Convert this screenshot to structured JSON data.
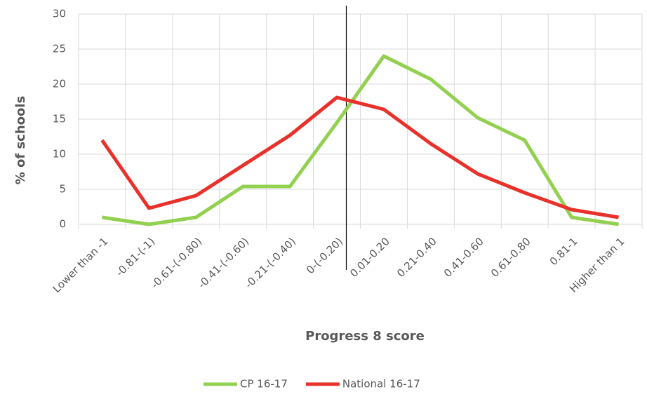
{
  "chart_data": {
    "type": "line",
    "x_label": "Progress 8 score",
    "y_label": "% of schools",
    "categories": [
      "Lower than -1",
      "-0.81-(-1)",
      "-0.61-(-0.80)",
      "-0.41-(-0.60)",
      "-0.21-(-0.40)",
      "0-(-0.20)",
      "0.01-0.20",
      "0.21-0.40",
      "0.41-0.60",
      "0.61-0.80",
      "0.81-1",
      "Higher than 1"
    ],
    "series": [
      {
        "name": "CP 16-17",
        "color": "#92d050",
        "values": [
          1,
          0,
          1,
          5.4,
          5.4,
          14.5,
          24,
          20.7,
          15.2,
          12,
          1,
          0
        ]
      },
      {
        "name": "National 16-17",
        "color": "#e8312a",
        "values": [
          12,
          2.3,
          4.1,
          8.4,
          12.7,
          18.1,
          16.4,
          11.5,
          7.2,
          4.5,
          2.1,
          1
        ]
      }
    ],
    "ylim": [
      0,
      30
    ],
    "yticks": [
      0,
      5,
      10,
      15,
      20,
      25,
      30
    ],
    "grid": true,
    "legend": "bottom"
  }
}
